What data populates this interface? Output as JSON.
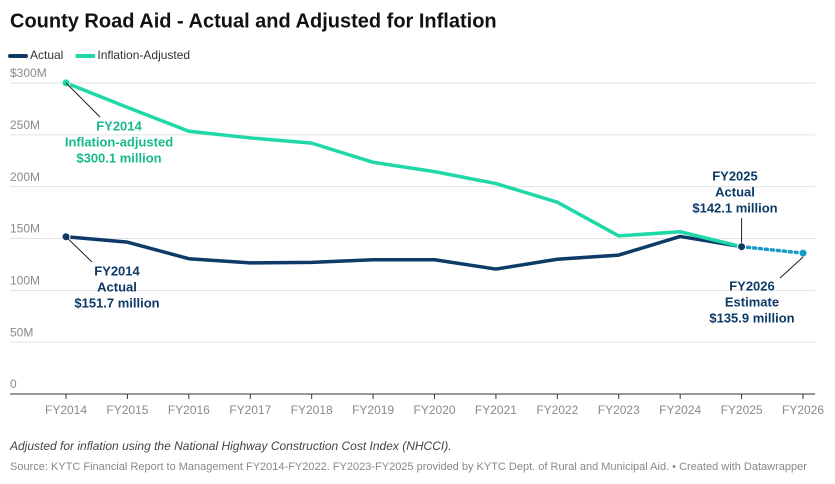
{
  "chart_data": {
    "type": "line",
    "title": "County Road Aid - Actual and Adjusted for Inflation",
    "categories": [
      "FY2014",
      "FY2015",
      "FY2016",
      "FY2017",
      "FY2018",
      "FY2019",
      "FY2020",
      "FY2021",
      "FY2022",
      "FY2023",
      "FY2024",
      "FY2025",
      "FY2026"
    ],
    "series": [
      {
        "name": "Actual",
        "color": "#0d3a66",
        "values": [
          151.7,
          146.5,
          130.5,
          126.5,
          127,
          129.5,
          129.5,
          120.5,
          130,
          134,
          152,
          142.1,
          null
        ]
      },
      {
        "name": "Inflation-Adjusted",
        "color": "#1fd8a8",
        "values": [
          300.1,
          276.5,
          253.5,
          247,
          242,
          223.5,
          214.5,
          203,
          185,
          152.5,
          156.5,
          142.1,
          null
        ]
      }
    ],
    "estimate": {
      "value": 135.9,
      "color": "#1a9bc7"
    },
    "ylim": [
      0,
      300
    ],
    "yticks": [
      0,
      {
        "value": 50,
        "label": "50M"
      },
      {
        "value": 100,
        "label": "100M"
      },
      {
        "value": 150,
        "label": "150M"
      },
      {
        "value": 200,
        "label": "200M"
      },
      {
        "value": 250,
        "label": "250M"
      },
      {
        "value": 300,
        "label": "$300M"
      }
    ],
    "grid": true,
    "annotations": [
      {
        "lines": [
          "FY2014",
          "Inflation-adjusted",
          "$300.1 million"
        ],
        "color": "#17b98b"
      },
      {
        "lines": [
          "FY2014",
          "Actual",
          "$151.7 million"
        ],
        "color": "#0d3a66"
      },
      {
        "lines": [
          "FY2025",
          "Actual",
          "$142.1 million"
        ],
        "color": "#0d3a66"
      },
      {
        "lines": [
          "FY2026",
          "Estimate",
          "$135.9 million"
        ],
        "color": "#0d3a66"
      }
    ],
    "note": "Adjusted for inflation using the National Highway Construction Cost Index (NHCCI).",
    "source": "Source: KYTC Financial Report to Management FY2014-FY2022. FY2023-FY2025 provided by KYTC Dept. of Rural and Municipal Aid. • Created with Datawrapper"
  }
}
